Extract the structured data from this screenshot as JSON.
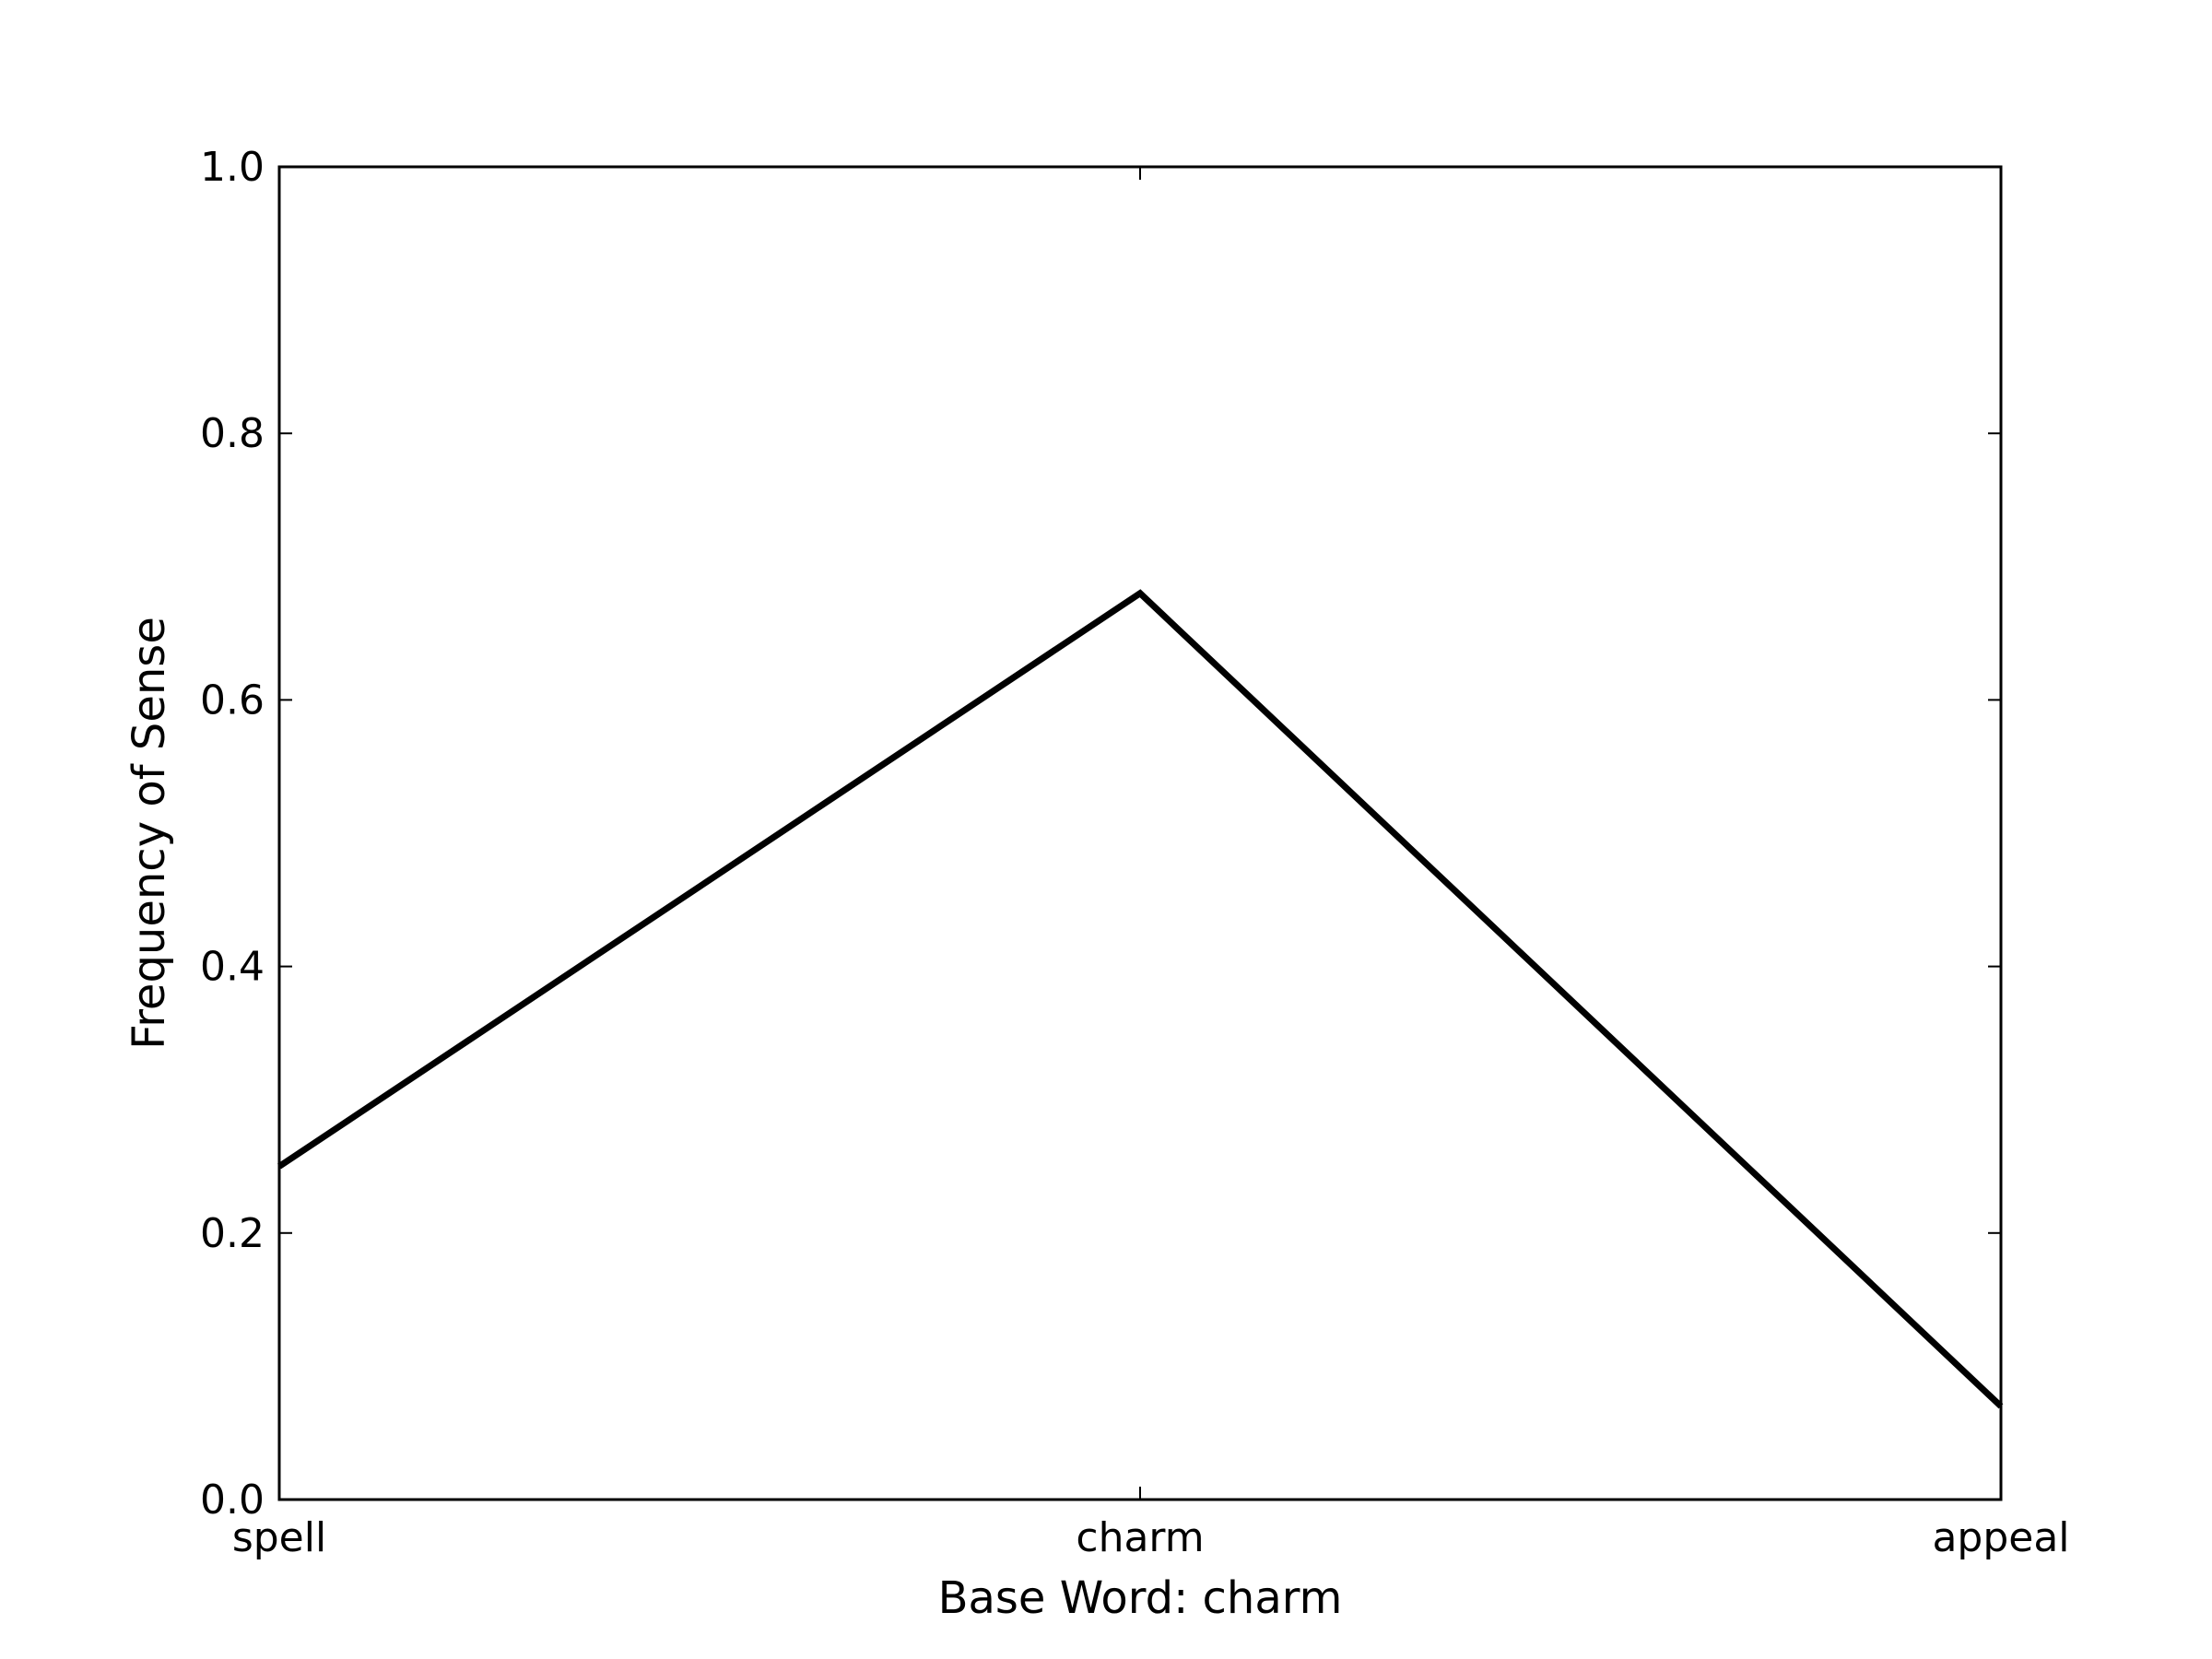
{
  "chart_data": {
    "type": "line",
    "title": "",
    "xlabel": "Base Word: charm",
    "ylabel": "Frequency of Sense",
    "categories": [
      "spell",
      "charm",
      "appeal"
    ],
    "series": [
      {
        "values": [
          0.25,
          0.68,
          0.07
        ]
      }
    ],
    "ylim": [
      0.0,
      1.0
    ],
    "yticks": [
      "0.0",
      "0.2",
      "0.4",
      "0.6",
      "0.8",
      "1.0"
    ],
    "ytick_values": [
      0.0,
      0.2,
      0.4,
      0.6,
      0.8,
      1.0
    ],
    "grid": false,
    "line_color": "#000000",
    "axes_color": "#000000",
    "background_color": "#ffffff"
  }
}
